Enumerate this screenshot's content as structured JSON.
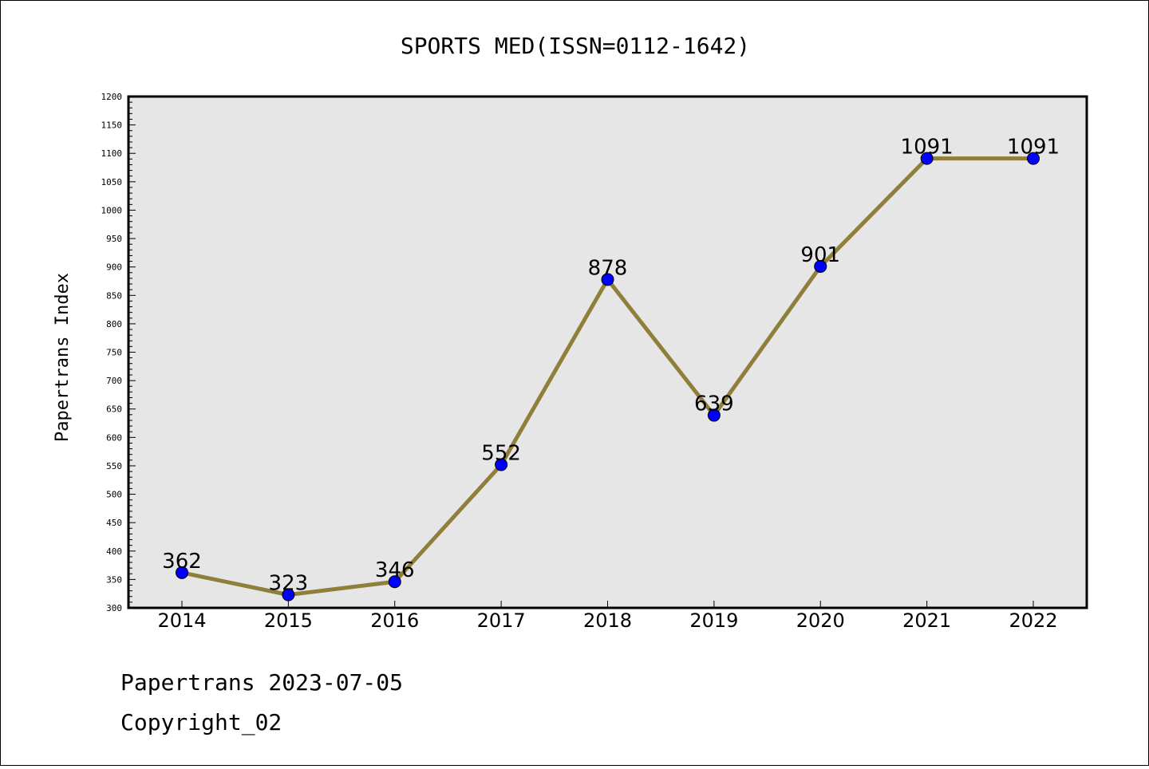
{
  "chart_data": {
    "type": "line",
    "title": "SPORTS MED(ISSN=0112-1642)",
    "xlabel": "",
    "ylabel": "Papertrans Index",
    "categories": [
      "2014",
      "2015",
      "2016",
      "2017",
      "2018",
      "2019",
      "2020",
      "2021",
      "2022"
    ],
    "series": [
      {
        "values": [
          362,
          323,
          346,
          552,
          878,
          639,
          901,
          1091,
          1091
        ],
        "labels": [
          "362",
          "323",
          "346",
          "552",
          "878",
          "639",
          "901",
          "1091",
          "1091"
        ]
      }
    ],
    "ylim": [
      300,
      1200
    ],
    "ytick_labels": [
      "300",
      "350",
      "400",
      "450",
      "500",
      "550",
      "600",
      "650",
      "700",
      "750",
      "800",
      "850",
      "900",
      "950",
      "1000",
      "1050",
      "1100",
      "1150",
      "1200"
    ],
    "grid": false,
    "legend": "none",
    "colors": {
      "line": "#8f7f3a",
      "marker": "#0000ff",
      "plot_background": "#e6e6e6"
    }
  },
  "footer": {
    "line1": "Papertrans 2023-07-05",
    "line2": "Copyright_02"
  }
}
